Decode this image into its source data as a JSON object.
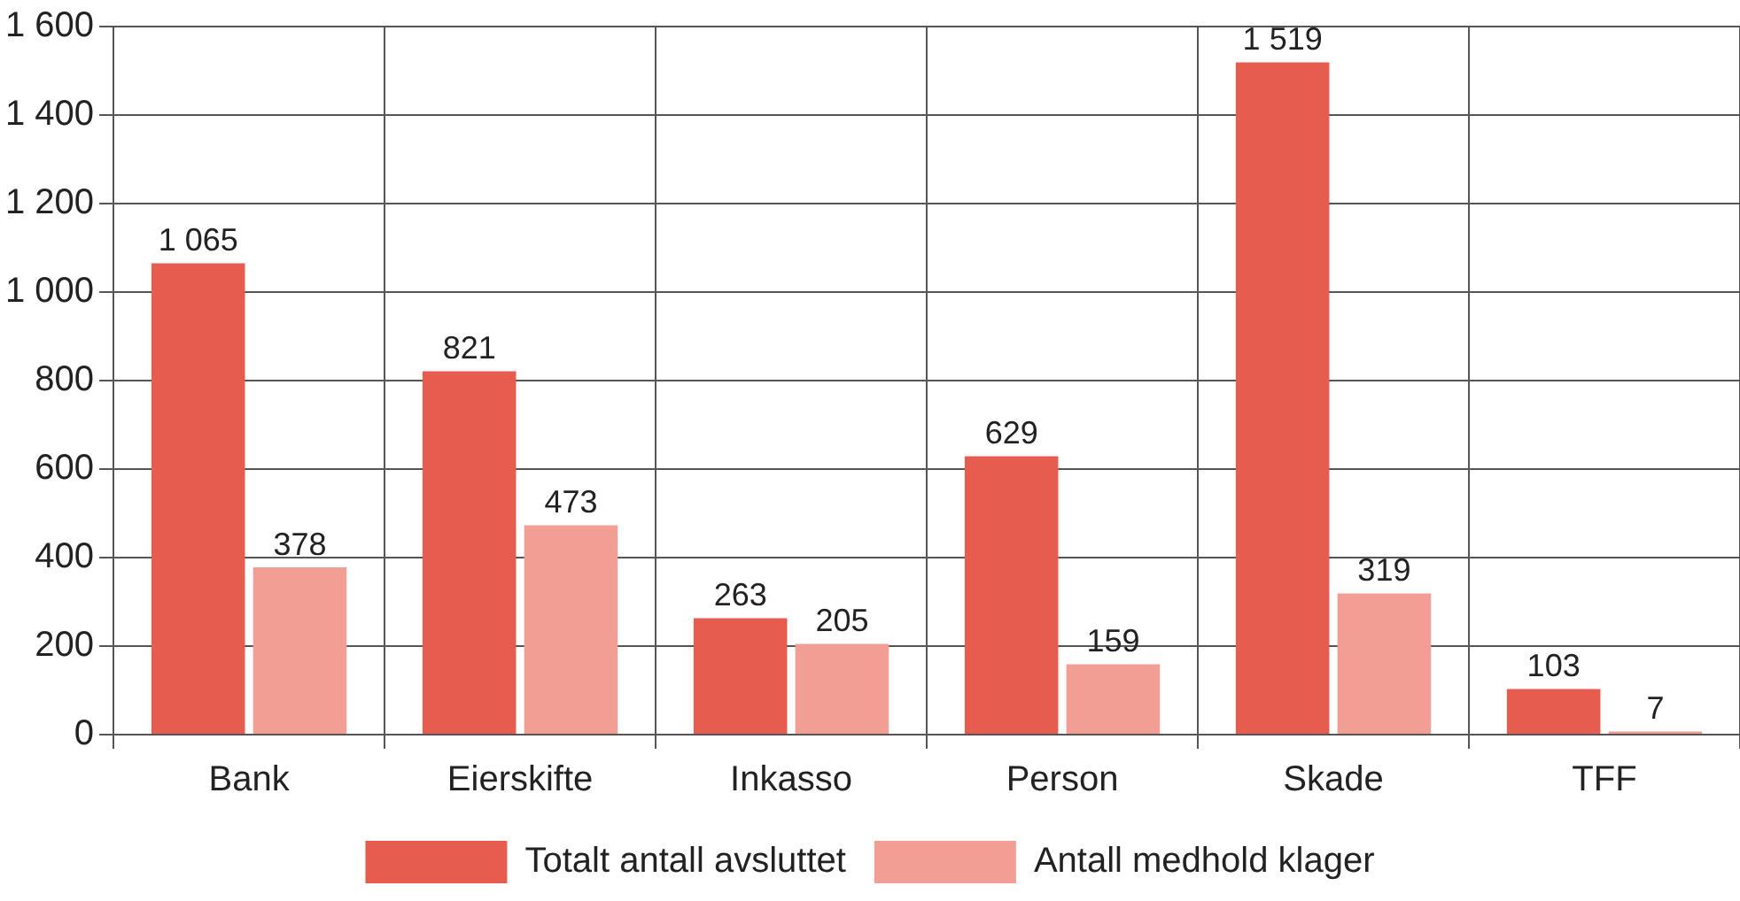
{
  "chart_data": {
    "type": "bar",
    "categories": [
      "Bank",
      "Eierskifte",
      "Inkasso",
      "Person",
      "Skade",
      "TFF"
    ],
    "series": [
      {
        "name": "Totalt antall avsluttet",
        "color": "#e65c4e",
        "values": [
          1065,
          821,
          263,
          629,
          1519,
          103
        ],
        "value_labels": [
          "1 065",
          "821",
          "263",
          "629",
          "1 519",
          "103"
        ]
      },
      {
        "name": "Antall medhold klager",
        "color": "#f29e95",
        "values": [
          378,
          473,
          205,
          159,
          319,
          7
        ],
        "value_labels": [
          "378",
          "473",
          "205",
          "159",
          "319",
          "7"
        ]
      }
    ],
    "ylim": [
      0,
      1600
    ],
    "yticks": [
      0,
      200,
      400,
      600,
      800,
      {
        "value": 1000,
        "label": "1 000"
      },
      {
        "value": 1200,
        "label": "1 200"
      },
      {
        "value": 1400,
        "label": "1 400"
      },
      {
        "value": 1600,
        "label": "1 600"
      }
    ],
    "grid": true,
    "legend": "bottom"
  }
}
